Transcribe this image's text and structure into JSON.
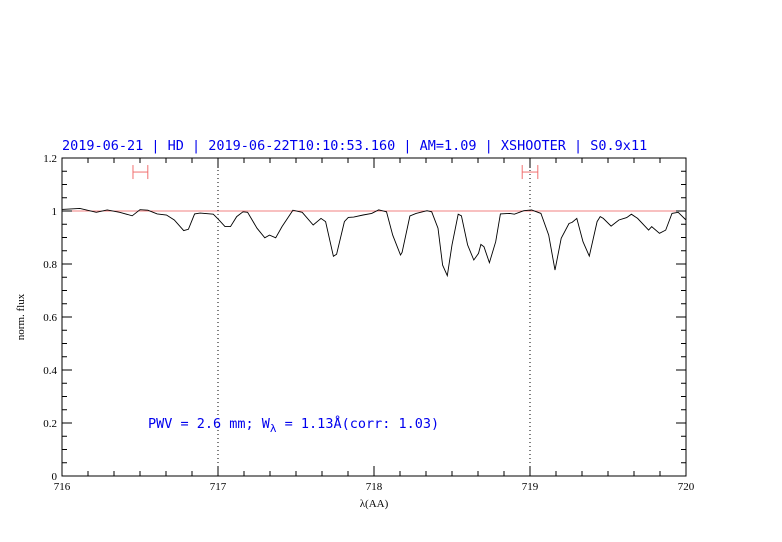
{
  "chart_data": {
    "type": "line",
    "title": "2019-06-21 | HD | 2019-06-22T10:10:53.160 | AM=1.09 | XSHOOTER | S0.9x11",
    "xlabel": "λ(AA)",
    "ylabel": "norm. flux",
    "xlim": [
      716,
      720
    ],
    "ylim": [
      0,
      1.2
    ],
    "xticks": [
      "716",
      "717",
      "718",
      "719",
      "720"
    ],
    "yticks": [
      "0",
      "0.2",
      "0.4",
      "0.6",
      "0.8",
      "1",
      "1.2"
    ],
    "grid": false,
    "reference_line": 1.0,
    "vertical_markers": [
      717,
      719
    ],
    "intervals": [
      [
        716.455,
        716.55
      ],
      [
        718.95,
        719.05
      ]
    ],
    "interval_level": 1.147,
    "annotation": {
      "prefix": "PWV = 2.6 mm; W",
      "subscript": "λ",
      "suffix": " = 1.13Å(corr: 1.03)"
    },
    "colors": {
      "title": "#0000ee",
      "spectrum": "#000000",
      "reference": "#f08080",
      "interval": "#f07070"
    },
    "series": [
      {
        "x": [
          716.0,
          716.115,
          716.22,
          716.29,
          716.37,
          716.45,
          716.5,
          716.55,
          716.61,
          716.67,
          716.72,
          716.78,
          716.81,
          716.85,
          716.885,
          716.97,
          717.0,
          717.045,
          717.08,
          717.12,
          717.16,
          717.19,
          717.25,
          717.3,
          717.33,
          717.37,
          717.41,
          717.48,
          717.54,
          717.61,
          717.66,
          717.69,
          717.74,
          717.76,
          717.81,
          717.835,
          717.87,
          717.93,
          717.985,
          718.03,
          718.08,
          718.12,
          718.17,
          718.18,
          718.23,
          718.27,
          718.34,
          718.37,
          718.41,
          718.44,
          718.47,
          718.5,
          718.54,
          718.56,
          718.6,
          718.64,
          718.67,
          718.685,
          718.705,
          718.74,
          718.78,
          718.81,
          718.87,
          718.9,
          718.96,
          719.01,
          719.07,
          719.12,
          719.16,
          719.2,
          719.25,
          719.27,
          719.3,
          719.34,
          719.38,
          719.43,
          719.45,
          719.47,
          719.52,
          719.57,
          719.62,
          719.65,
          719.69,
          719.76,
          719.78,
          719.83,
          719.87,
          719.91,
          719.95,
          720.0
        ],
        "y": [
          1.006,
          1.01,
          0.995,
          1.004,
          0.995,
          0.982,
          1.005,
          1.003,
          0.989,
          0.985,
          0.966,
          0.926,
          0.931,
          0.989,
          0.992,
          0.988,
          0.97,
          0.941,
          0.941,
          0.979,
          0.997,
          0.995,
          0.935,
          0.899,
          0.909,
          0.899,
          0.941,
          1.003,
          0.995,
          0.947,
          0.972,
          0.96,
          0.829,
          0.837,
          0.96,
          0.976,
          0.977,
          0.985,
          0.991,
          1.004,
          0.997,
          0.909,
          0.834,
          0.844,
          0.981,
          0.991,
          1.001,
          0.997,
          0.935,
          0.796,
          0.756,
          0.872,
          0.988,
          0.982,
          0.872,
          0.815,
          0.84,
          0.874,
          0.865,
          0.805,
          0.884,
          0.989,
          0.991,
          0.988,
          1.001,
          1.004,
          0.991,
          0.909,
          0.777,
          0.897,
          0.953,
          0.957,
          0.972,
          0.884,
          0.83,
          0.96,
          0.979,
          0.972,
          0.943,
          0.966,
          0.975,
          0.988,
          0.972,
          0.928,
          0.941,
          0.916,
          0.928,
          0.991,
          0.995,
          0.966
        ]
      }
    ]
  }
}
